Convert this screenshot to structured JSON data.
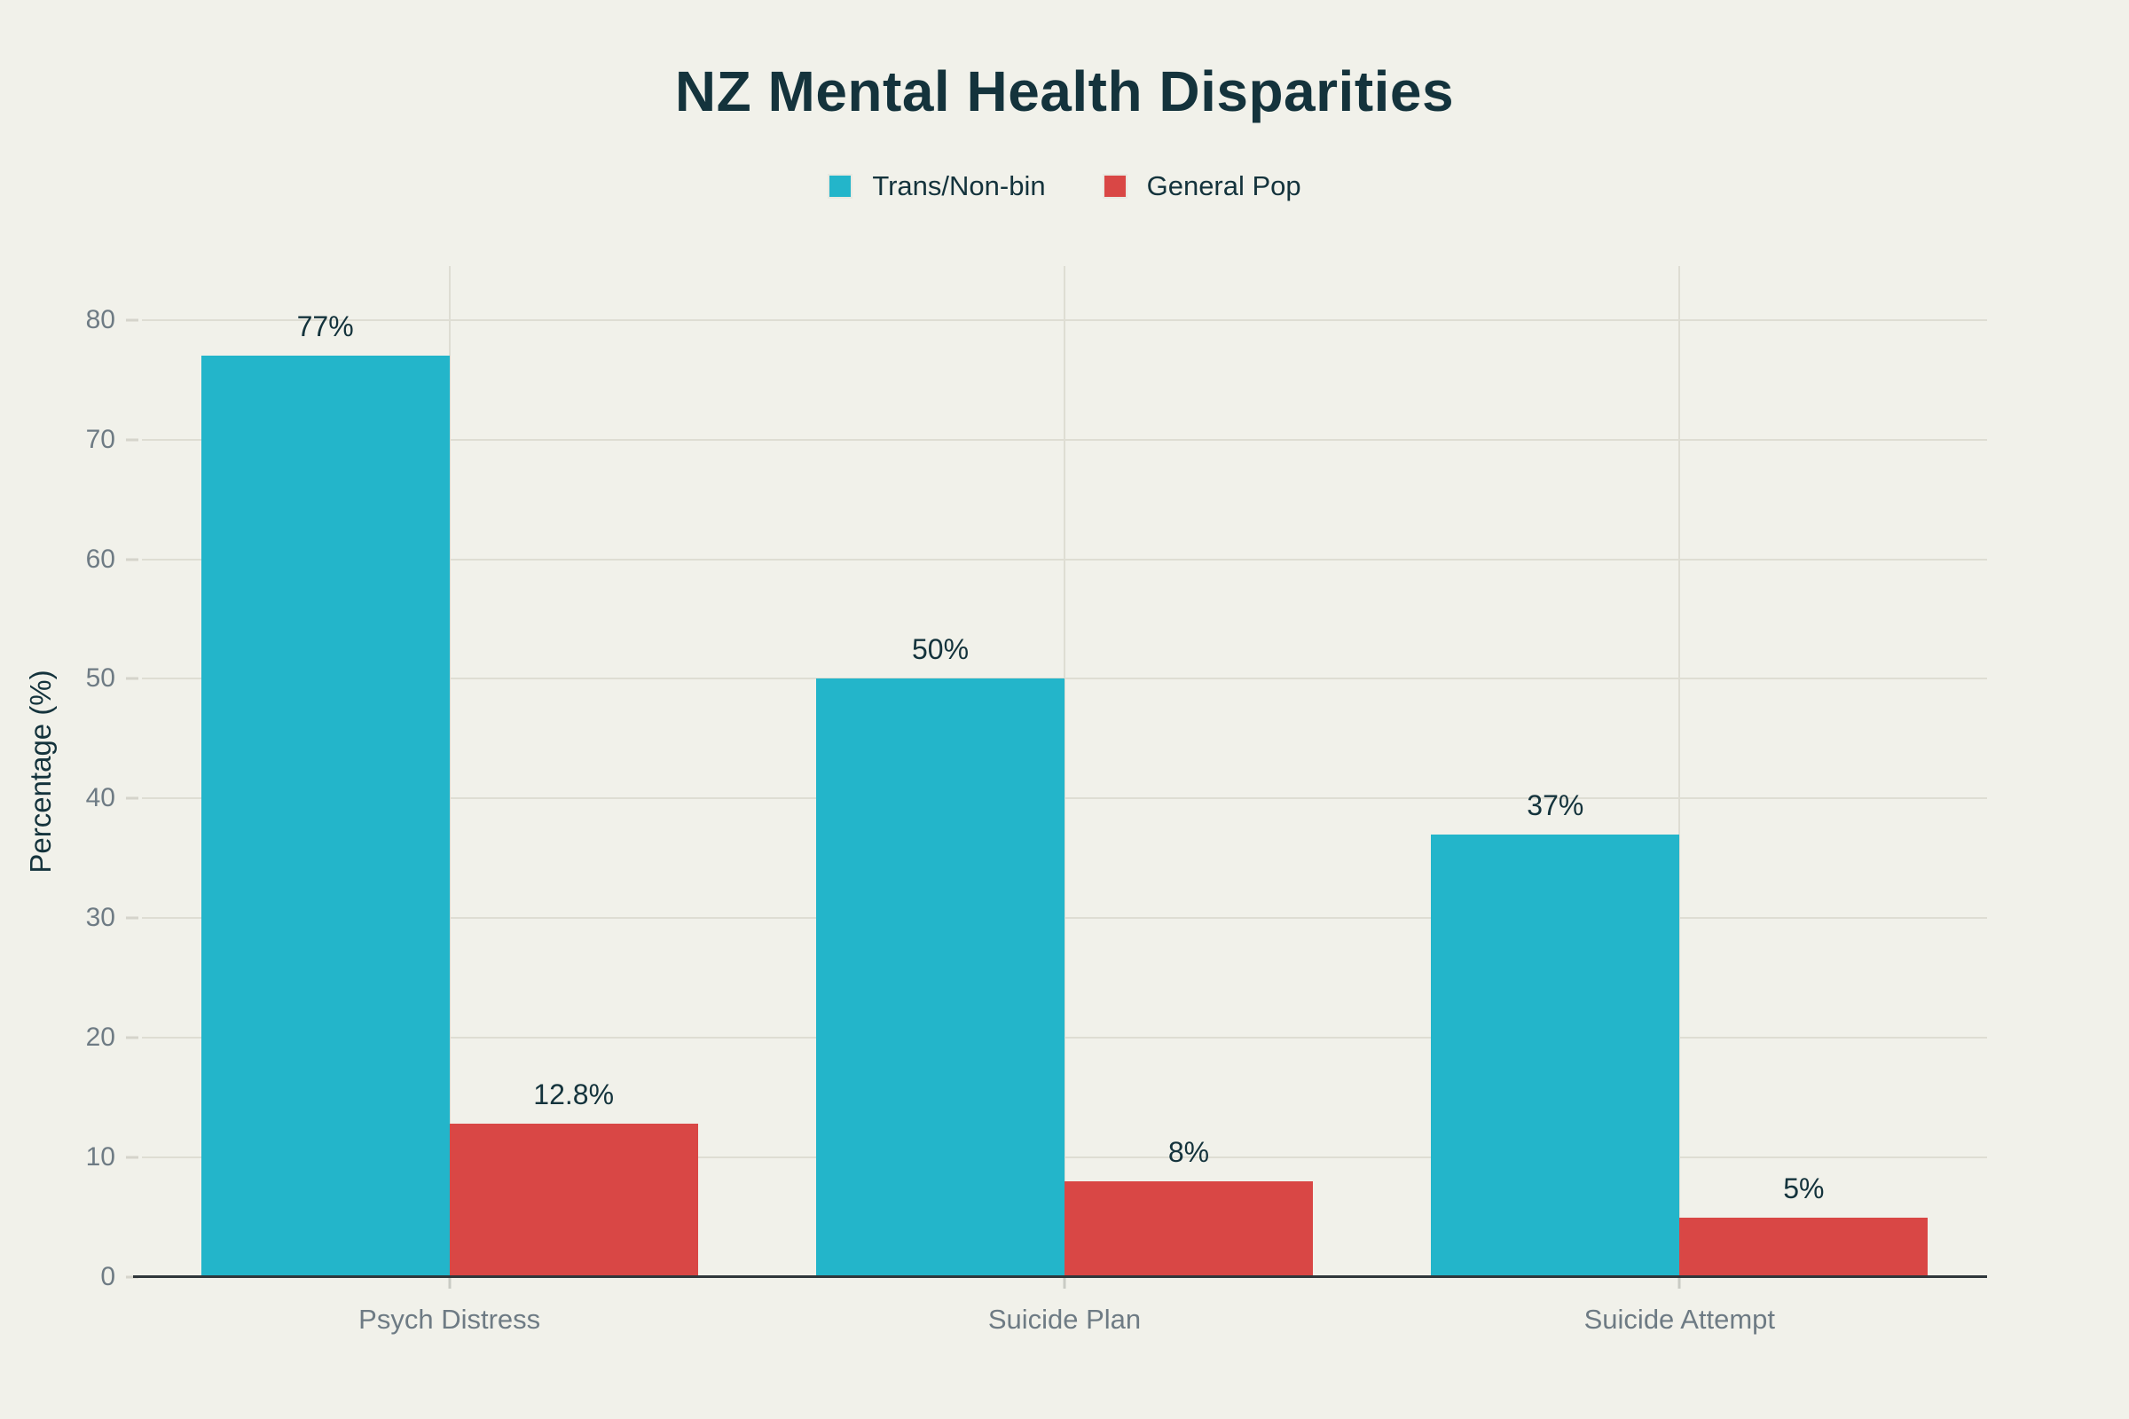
{
  "title": "NZ Mental Health Disparities",
  "chart_data": {
    "type": "bar",
    "title": "NZ Mental Health Disparities",
    "categories": [
      "Psych Distress",
      "Suicide Plan",
      "Suicide Attempt"
    ],
    "series": [
      {
        "name": "Trans/Non-bin",
        "color": "#23B5CA",
        "values": [
          77,
          50,
          37
        ],
        "value_labels": [
          "77%",
          "50%",
          "37%"
        ]
      },
      {
        "name": "General Pop",
        "color": "#D94745",
        "values": [
          12.8,
          8,
          5
        ],
        "value_labels": [
          "12.8%",
          "8%",
          "5%"
        ]
      }
    ],
    "xlabel": "",
    "ylabel": "Percentage (%)",
    "ylim": [
      0,
      84.5
    ],
    "yticks": [
      0,
      10,
      20,
      30,
      40,
      50,
      60,
      70,
      80
    ],
    "grid": true,
    "legend_position": "top-center"
  },
  "colors": {
    "background": "#F1F1EA",
    "text_dark": "#14333C",
    "text_muted": "#6E7B84",
    "gridline": "#DEDDD3",
    "axis_line": "#2F373B",
    "series_teal": "#23B5CA",
    "series_red": "#D94745"
  }
}
